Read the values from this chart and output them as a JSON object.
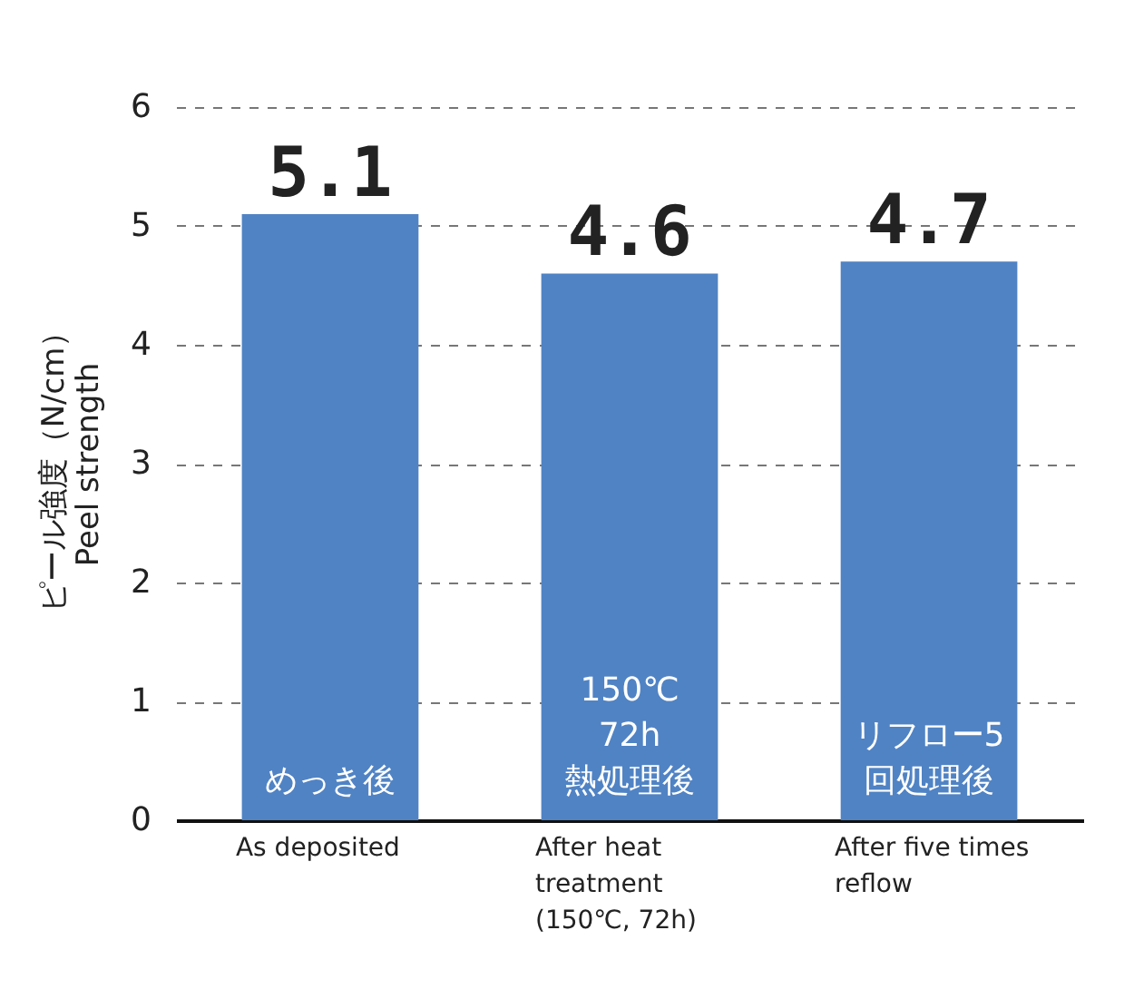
{
  "chart_data": {
    "type": "bar",
    "ylabel": "ピール強度（N/cm）\nPeel strength",
    "categories": [
      "As deposited",
      "After heat\ntreatment\n(150℃, 72h)",
      "After five times\nreflow"
    ],
    "values": [
      5.1,
      4.6,
      4.7
    ],
    "color": "#5083c4",
    "data_labels": true,
    "ylim": [
      0,
      6
    ],
    "yticks": [
      0,
      1,
      2,
      3,
      4,
      5,
      6
    ],
    "grid": "y",
    "annotations": [
      "めっき後",
      "150℃ 72h 熱処理後",
      "リフロー5回処理後"
    ]
  }
}
